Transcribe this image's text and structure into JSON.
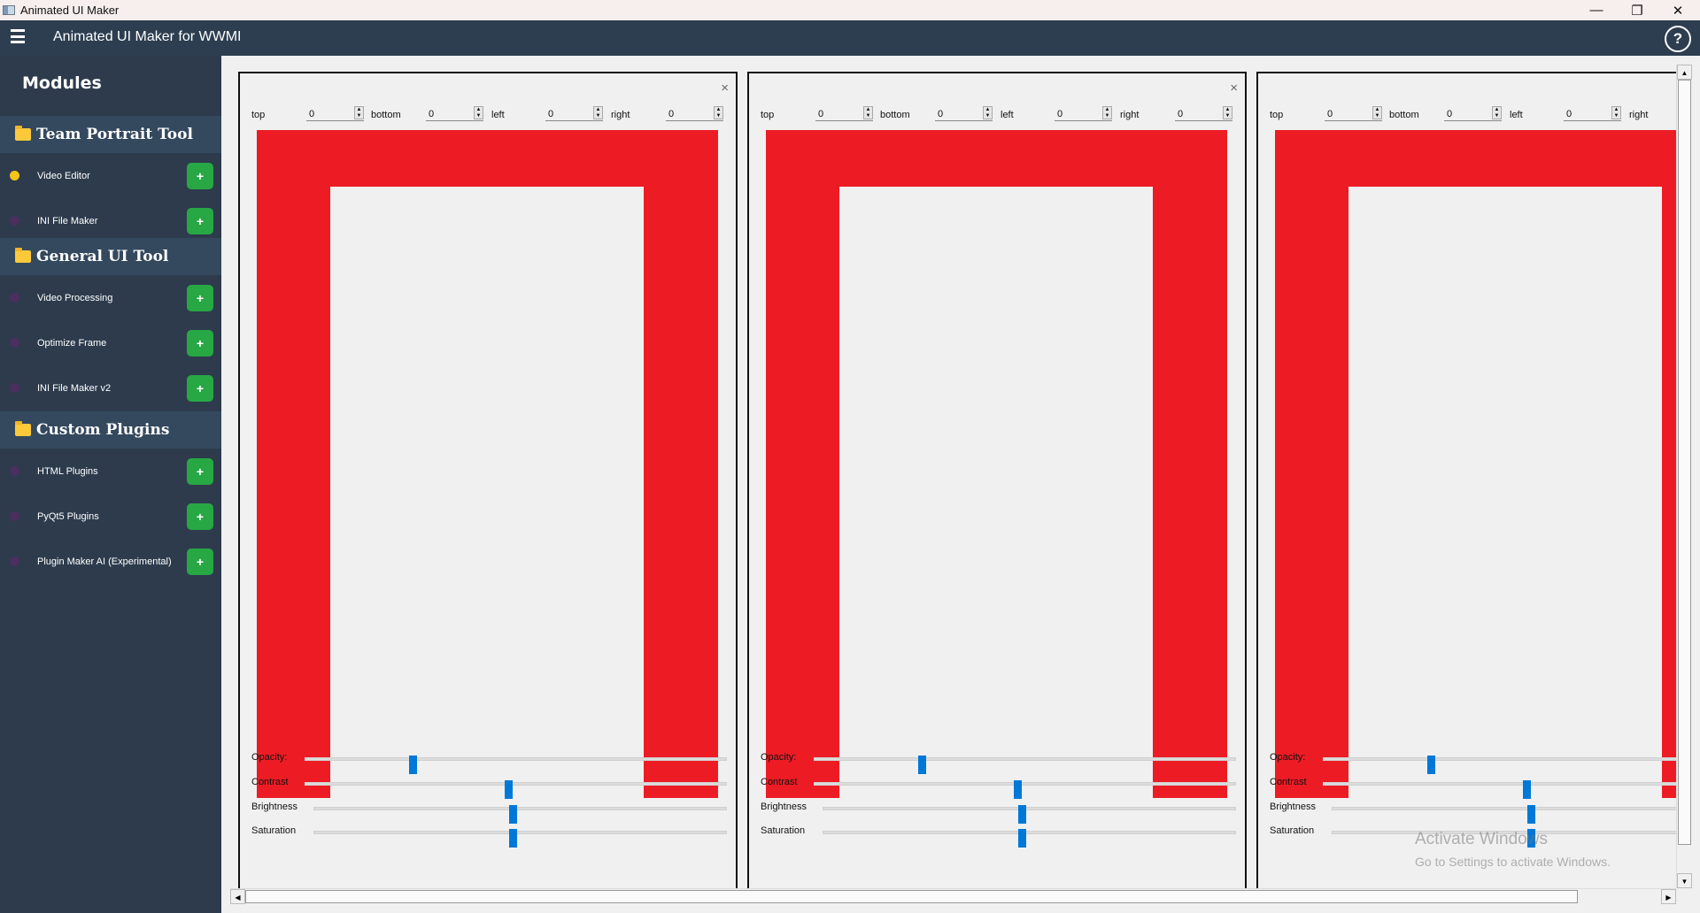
{
  "window": {
    "title": "Animated UI Maker",
    "controls": {
      "minimize": "—",
      "restore": "❐",
      "close": "✕"
    }
  },
  "header": {
    "title": "Animated UI Maker for WWMI",
    "help": "?",
    "menu_icon": "hamburger-icon"
  },
  "sidebar": {
    "title": "Modules",
    "sections": [
      {
        "label": "Team Portrait Tool",
        "items": [
          {
            "label": "Video Editor",
            "active": true
          },
          {
            "label": "INI File Maker",
            "active": false
          }
        ]
      },
      {
        "label": "General UI Tool",
        "items": [
          {
            "label": "Video Processing",
            "active": false
          },
          {
            "label": "Optimize Frame",
            "active": false
          },
          {
            "label": "INI File Maker v2",
            "active": false
          }
        ]
      },
      {
        "label": "Custom Plugins",
        "items": [
          {
            "label": "HTML Plugins",
            "active": false
          },
          {
            "label": "PyQt5 Plugins",
            "active": false
          },
          {
            "label": "Plugin Maker AI (Experimental)",
            "active": false
          }
        ]
      }
    ],
    "add_label": "+"
  },
  "panels": [
    {
      "close": "×",
      "fields": [
        {
          "label": "top",
          "value": "0"
        },
        {
          "label": "bottom",
          "value": "0"
        },
        {
          "label": "left",
          "value": "0"
        },
        {
          "label": "right",
          "value": "0"
        }
      ],
      "sliders": [
        {
          "label": "Opacity:",
          "value": 0.25
        },
        {
          "label": "Contrast",
          "value": 0.48
        },
        {
          "label": "Brightness",
          "value": 0.48
        },
        {
          "label": "Saturation",
          "value": 0.48
        }
      ]
    },
    {
      "close": "×",
      "fields": [
        {
          "label": "top",
          "value": "0"
        },
        {
          "label": "bottom",
          "value": "0"
        },
        {
          "label": "left",
          "value": "0"
        },
        {
          "label": "right",
          "value": "0"
        }
      ],
      "sliders": [
        {
          "label": "Opacity:",
          "value": 0.25
        },
        {
          "label": "Contrast",
          "value": 0.48
        },
        {
          "label": "Brightness",
          "value": 0.48
        },
        {
          "label": "Saturation",
          "value": 0.48
        }
      ]
    },
    {
      "close": "×",
      "fields": [
        {
          "label": "top",
          "value": "0"
        },
        {
          "label": "bottom",
          "value": "0"
        },
        {
          "label": "left",
          "value": "0"
        },
        {
          "label": "right",
          "value": "0"
        }
      ],
      "sliders": [
        {
          "label": "Opacity:",
          "value": 0.25
        },
        {
          "label": "Contrast",
          "value": 0.48
        },
        {
          "label": "Brightness",
          "value": 0.48
        },
        {
          "label": "Saturation",
          "value": 0.48
        }
      ]
    }
  ],
  "colors": {
    "frame": "#ed1c24",
    "accent": "#0078d7",
    "add": "#28a745",
    "header": "#2d3e50"
  },
  "watermark": {
    "line1": "Activate Windows",
    "line2": "Go to Settings to activate Windows."
  }
}
